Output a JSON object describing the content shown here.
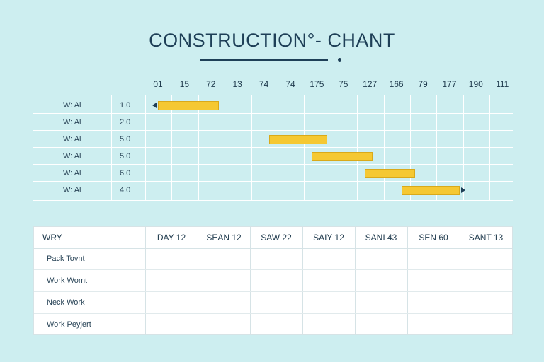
{
  "title": "CONSTRUCTION°- CHANT",
  "chart_data": {
    "type": "gantt",
    "timeline_ticks": [
      "01",
      "15",
      "72",
      "13",
      "74",
      "74",
      "175",
      "75",
      "127",
      "166",
      "79",
      "177",
      "190",
      "111"
    ],
    "tasks": [
      {
        "name": "W: Al",
        "value": "1.0",
        "start_tick": 0,
        "end_tick": 2.3,
        "arrow": "left"
      },
      {
        "name": "W: Al",
        "value": "2.0",
        "start_tick": null,
        "end_tick": null,
        "arrow": null
      },
      {
        "name": "W: Al",
        "value": "5.0",
        "start_tick": 4.2,
        "end_tick": 6.4,
        "arrow": null
      },
      {
        "name": "W: Al",
        "value": "5.0",
        "start_tick": 5.8,
        "end_tick": 8.1,
        "arrow": null
      },
      {
        "name": "W: Al",
        "value": "6.0",
        "start_tick": 7.8,
        "end_tick": 9.7,
        "arrow": null
      },
      {
        "name": "W: Al",
        "value": "4.0",
        "start_tick": 9.2,
        "end_tick": 11.4,
        "arrow": "right"
      }
    ],
    "colors": {
      "bar": "#f5c832",
      "bar_border": "#d9a91a",
      "arrow": "#1e3f57",
      "background": "#cdeef0"
    }
  },
  "table": {
    "header": [
      "WRY",
      "DAY 12",
      "SEAN 12",
      "SAW 22",
      "SAIY 12",
      "SANI 43",
      "SEN 60",
      "SANT 13"
    ],
    "rows": [
      "Pack Tovnt",
      "Work Womt",
      "Neck Work",
      "Work Peyjert"
    ]
  }
}
